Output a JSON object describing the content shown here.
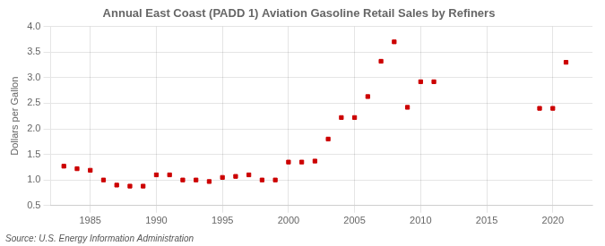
{
  "chart_data": {
    "type": "scatter",
    "title": "Annual East Coast (PADD 1) Aviation Gasoline Retail Sales by Refiners",
    "ylabel": "Dollars per Gallon",
    "annotations": [
      "Source: U.S. Energy Information Administration"
    ],
    "x": [
      1983,
      1984,
      1985,
      1986,
      1987,
      1988,
      1989,
      1990,
      1991,
      1992,
      1993,
      1994,
      1995,
      1996,
      1997,
      1998,
      1999,
      2000,
      2001,
      2002,
      2003,
      2004,
      2005,
      2006,
      2007,
      2008,
      2009,
      2010,
      2011,
      2019,
      2020,
      2021
    ],
    "values": [
      1.27,
      1.22,
      1.19,
      1.0,
      0.9,
      0.88,
      0.88,
      1.1,
      1.1,
      1.0,
      1.0,
      0.97,
      1.05,
      1.07,
      1.1,
      1.0,
      1.0,
      1.35,
      1.35,
      1.37,
      1.8,
      2.22,
      2.22,
      2.63,
      3.32,
      3.7,
      2.42,
      2.92,
      2.92,
      2.4,
      2.4,
      3.3
    ],
    "color": "#cc0000",
    "marker": "square",
    "xlim": [
      1982,
      2023
    ],
    "ylim": [
      0.5,
      4.0
    ],
    "xticks": [
      1985,
      1990,
      1995,
      2000,
      2005,
      2010,
      2015,
      2020
    ],
    "yticks": [
      0.5,
      {
        "value": 1.0,
        "label": "1.0"
      },
      1.5,
      {
        "value": 2.0,
        "label": "2.0"
      },
      2.5,
      {
        "value": 3.0,
        "label": "3.0"
      },
      3.5,
      {
        "value": 4.0,
        "label": "4.0"
      }
    ],
    "grid": true
  }
}
